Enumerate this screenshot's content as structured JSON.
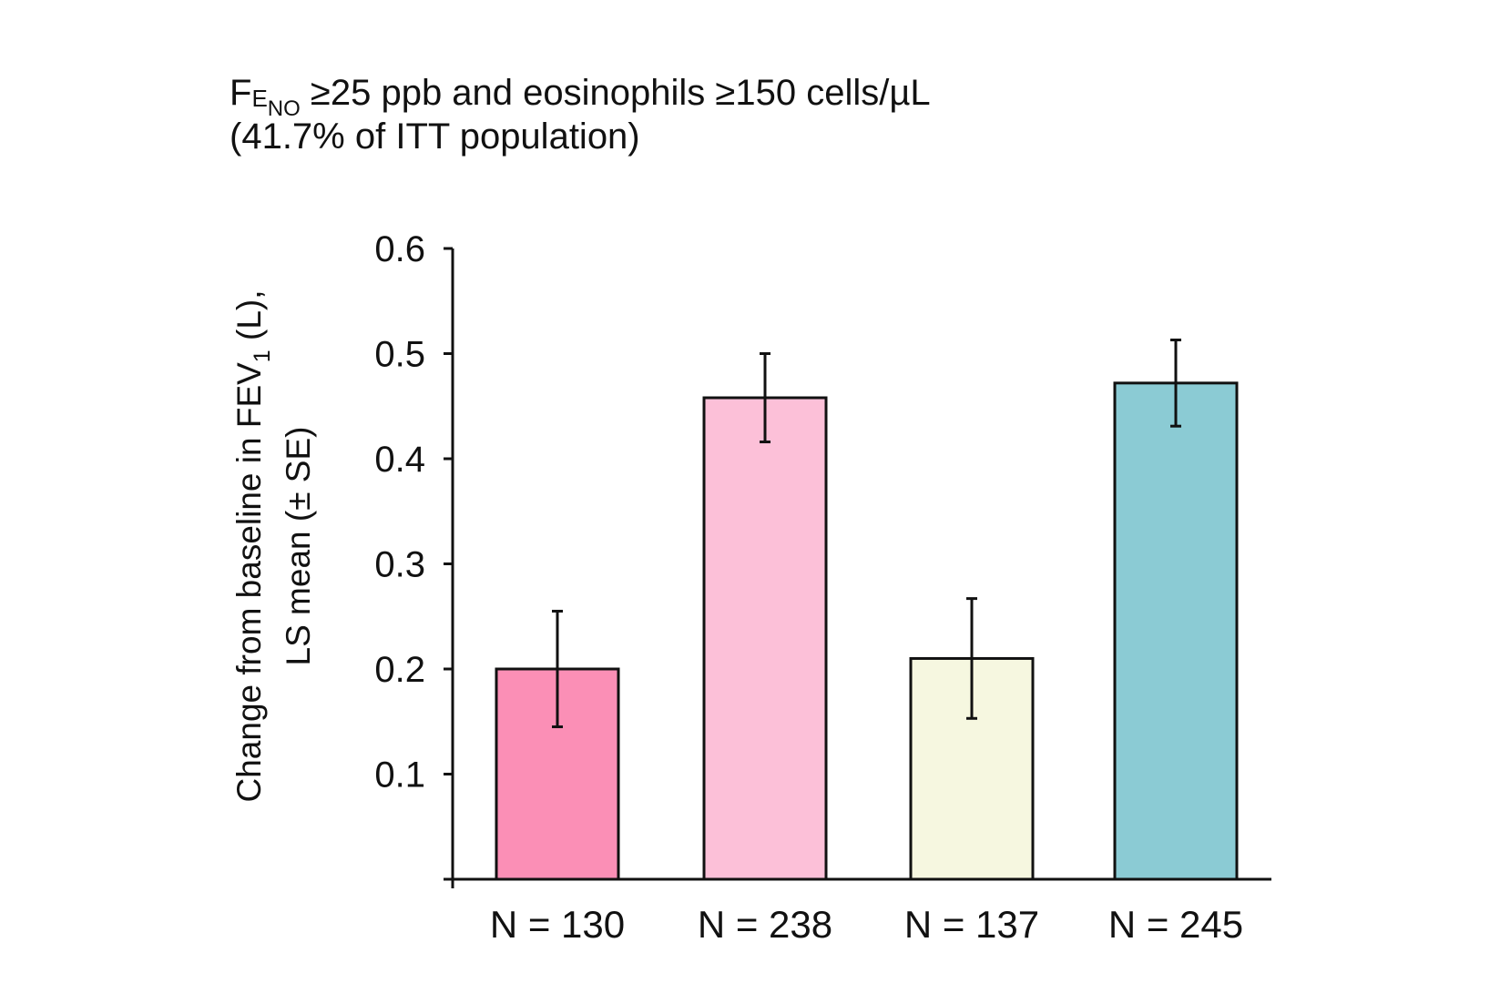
{
  "chart_data": {
    "type": "bar",
    "title": {
      "prefix": "F",
      "prefix_sub": "E",
      "prefix_sub2": "NO",
      "line1_rest": " ≥25 ppb and eosinophils ≥150 cells/µL",
      "line2": "(41.7% of ITT population)"
    },
    "ylabel": {
      "line1_before": "Change from baseline in FEV",
      "line1_sub": "1",
      "line1_after": " (L),",
      "line2": "LS mean (± SE)"
    },
    "xlabel": "",
    "ylim": [
      0,
      0.6
    ],
    "yticks": [
      0.1,
      0.2,
      0.3,
      0.4,
      0.5,
      0.6
    ],
    "ytick_labels": [
      "0.1",
      "0.2",
      "0.3",
      "0.4",
      "0.5",
      "0.6"
    ],
    "grid": false,
    "categories": [
      "N = 130",
      "N = 238",
      "N = 137",
      "N = 245"
    ],
    "values": [
      0.2,
      0.458,
      0.21,
      0.472
    ],
    "errors": [
      0.055,
      0.042,
      0.057,
      0.041
    ],
    "colors": [
      "#fb8fb6",
      "#fcc0d8",
      "#f6f7e0",
      "#8bcbd4"
    ]
  }
}
